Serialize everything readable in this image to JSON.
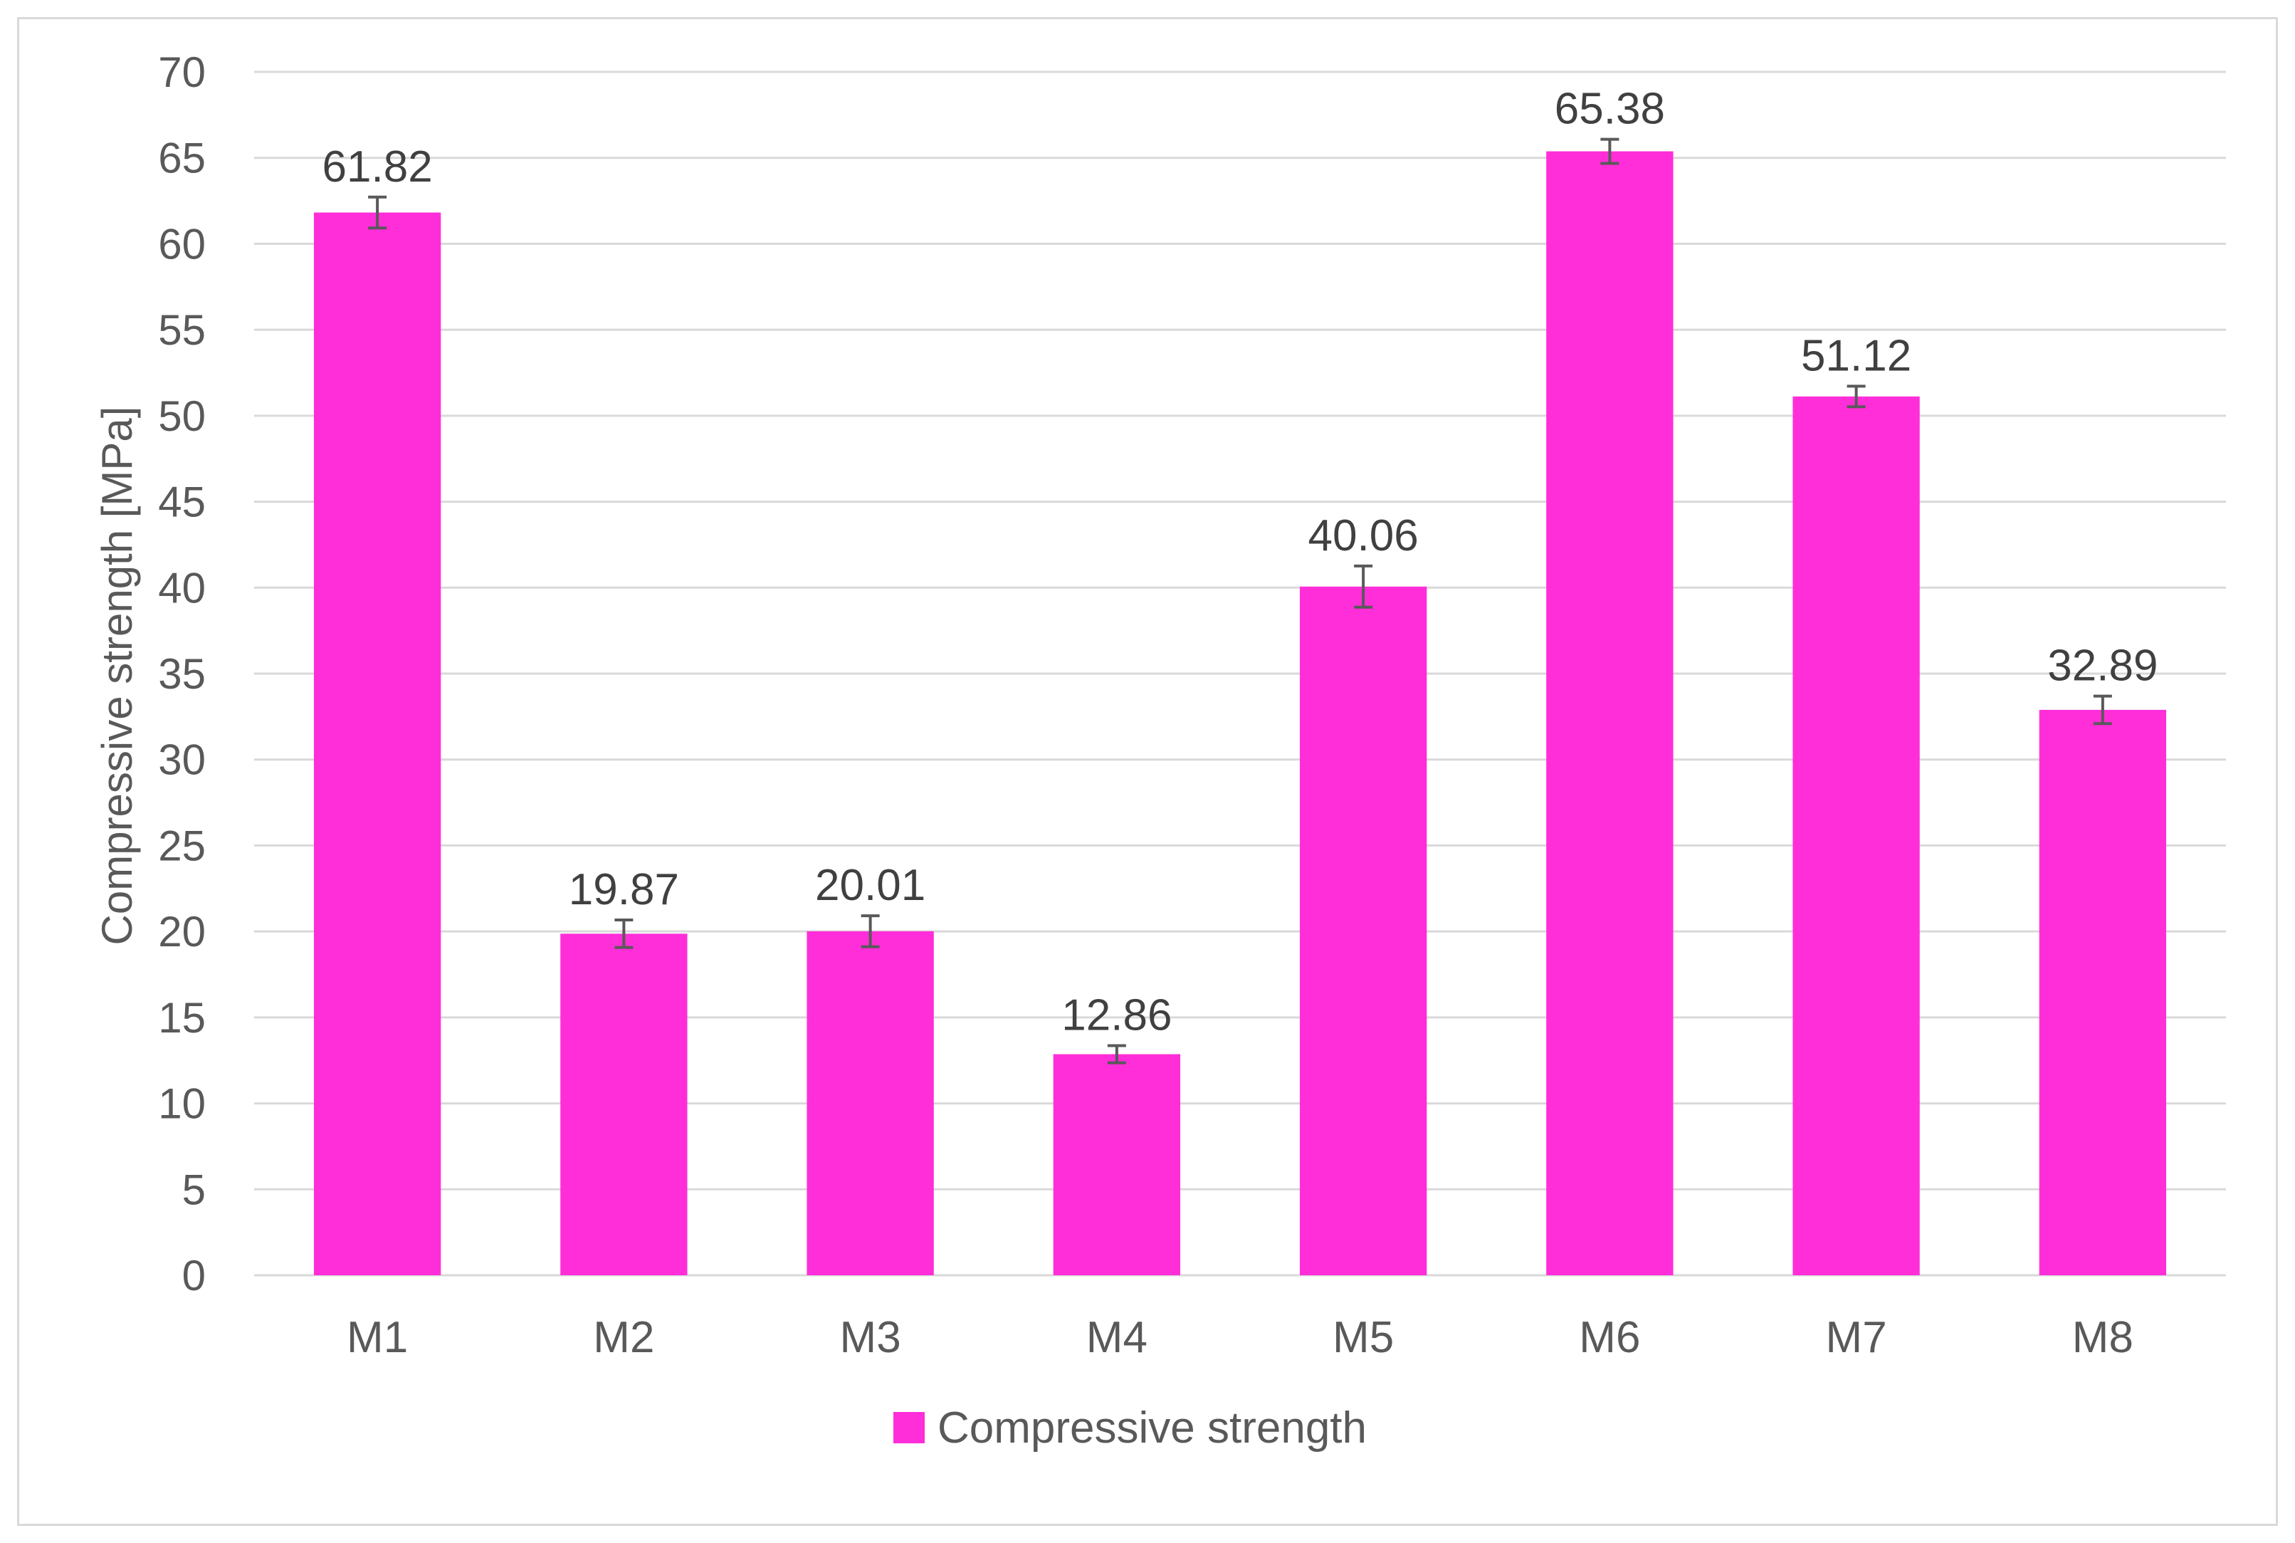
{
  "chart_data": {
    "type": "bar",
    "title": "",
    "xlabel": "",
    "ylabel": "Compressive strength [MPa]",
    "ylim": [
      0,
      70
    ],
    "yticks": [
      0,
      5,
      10,
      15,
      20,
      25,
      30,
      35,
      40,
      45,
      50,
      55,
      60,
      65,
      70
    ],
    "grid": true,
    "categories": [
      "M1",
      "M2",
      "M3",
      "M4",
      "M5",
      "M6",
      "M7",
      "M8"
    ],
    "series": [
      {
        "name": "Compressive strength",
        "color": "#ff2ed8",
        "values": [
          61.82,
          19.87,
          20.01,
          12.86,
          40.06,
          65.38,
          51.12,
          32.89
        ],
        "labels": [
          "61.82",
          "19.87",
          "20.01",
          "12.86",
          "40.06",
          "65.38",
          "51.12",
          "32.89"
        ],
        "errors": [
          0.9,
          0.8,
          0.9,
          0.5,
          1.2,
          0.7,
          0.6,
          0.8
        ]
      }
    ],
    "legend": {
      "position": "bottom",
      "entries": [
        "Compressive strength"
      ]
    }
  }
}
